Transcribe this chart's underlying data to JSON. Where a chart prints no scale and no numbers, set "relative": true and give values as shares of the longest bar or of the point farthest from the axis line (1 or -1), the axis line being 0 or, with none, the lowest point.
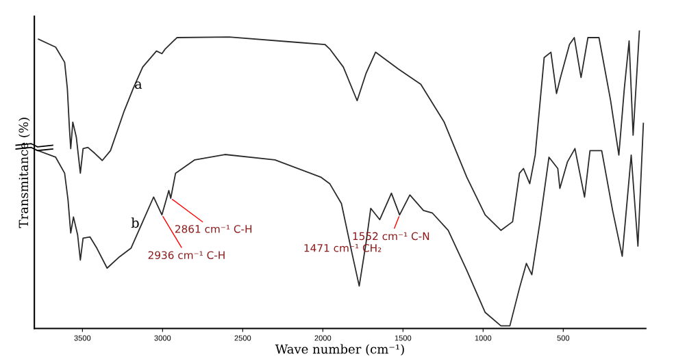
{
  "chart_data": {
    "type": "line",
    "relative": true,
    "xlabel": "Wave number (cm⁻¹)",
    "ylabel": "Transmitance (%)",
    "xlim": [
      3800,
      -15
    ],
    "xticks": [
      3500,
      3000,
      2500,
      2000,
      1500,
      1000,
      500
    ],
    "grid": false,
    "marker": "none",
    "line_style": "solid",
    "series": [
      {
        "color": "#2a2a2a",
        "x": [
          3774,
          3667,
          3611,
          3594,
          3581,
          3573,
          3560,
          3538,
          3513,
          3496,
          3466,
          3423,
          3376,
          3325,
          3239,
          3184,
          3124,
          3038,
          3004,
          2983,
          2910,
          2585,
          2158,
          1987,
          1957,
          1872,
          1786,
          1731,
          1671,
          1530,
          1389,
          1243,
          1102,
          987,
          889,
          816,
          773,
          748,
          709,
          675,
          619,
          577,
          542,
          517,
          461,
          431,
          389,
          346,
          277,
          205,
          153,
          119,
          89,
          64,
          25
        ],
        "values": [
          0.973,
          0.946,
          0.895,
          0.806,
          0.672,
          0.605,
          0.694,
          0.643,
          0.522,
          0.605,
          0.609,
          0.589,
          0.565,
          0.598,
          0.732,
          0.806,
          0.879,
          0.933,
          0.924,
          0.94,
          0.978,
          0.98,
          0.962,
          0.955,
          0.94,
          0.879,
          0.766,
          0.857,
          0.929,
          0.873,
          0.821,
          0.694,
          0.509,
          0.382,
          0.33,
          0.359,
          0.522,
          0.538,
          0.487,
          0.583,
          0.911,
          0.929,
          0.79,
          0.844,
          0.955,
          0.978,
          0.844,
          0.978,
          0.978,
          0.768,
          0.583,
          0.806,
          0.967,
          0.65,
          1.0
        ]
      },
      {
        "color": "#2a2a2a",
        "x": [
          3786,
          3667,
          3611,
          3590,
          3573,
          3556,
          3530,
          3513,
          3496,
          3453,
          3410,
          3346,
          3269,
          3197,
          3124,
          3056,
          3004,
          2961,
          2949,
          2919,
          2799,
          2611,
          2299,
          2013,
          1957,
          1884,
          1816,
          1773,
          1731,
          1701,
          1645,
          1572,
          1521,
          1457,
          1372,
          1316,
          1218,
          1102,
          987,
          889,
          833,
          773,
          730,
          696,
          645,
          589,
          534,
          521,
          474,
          427,
          367,
          333,
          260,
          192,
          132,
          76,
          34,
          0
        ],
        "values": [
          0.6,
          0.576,
          0.522,
          0.433,
          0.321,
          0.375,
          0.315,
          0.23,
          0.304,
          0.308,
          0.27,
          0.203,
          0.241,
          0.27,
          0.359,
          0.442,
          0.382,
          0.464,
          0.438,
          0.522,
          0.567,
          0.585,
          0.567,
          0.509,
          0.487,
          0.42,
          0.248,
          0.143,
          0.286,
          0.404,
          0.366,
          0.455,
          0.382,
          0.449,
          0.397,
          0.388,
          0.33,
          0.196,
          0.054,
          0.009,
          0.009,
          0.136,
          0.219,
          0.181,
          0.359,
          0.576,
          0.538,
          0.471,
          0.56,
          0.605,
          0.442,
          0.598,
          0.598,
          0.397,
          0.243,
          0.583,
          0.277,
          0.69
        ]
      }
    ],
    "annotations": [
      "a",
      "b",
      {
        "text": "2861 cm⁻¹ C-H",
        "x": 2949,
        "y": 0.438
      },
      {
        "text": "2936 cm⁻¹ C-H",
        "x": 3004,
        "y": 0.382
      },
      {
        "text": "1552 cm⁻¹ C-N",
        "x": 1521,
        "y": 0.382
      },
      "1471 cm⁻¹ CH₂"
    ]
  }
}
